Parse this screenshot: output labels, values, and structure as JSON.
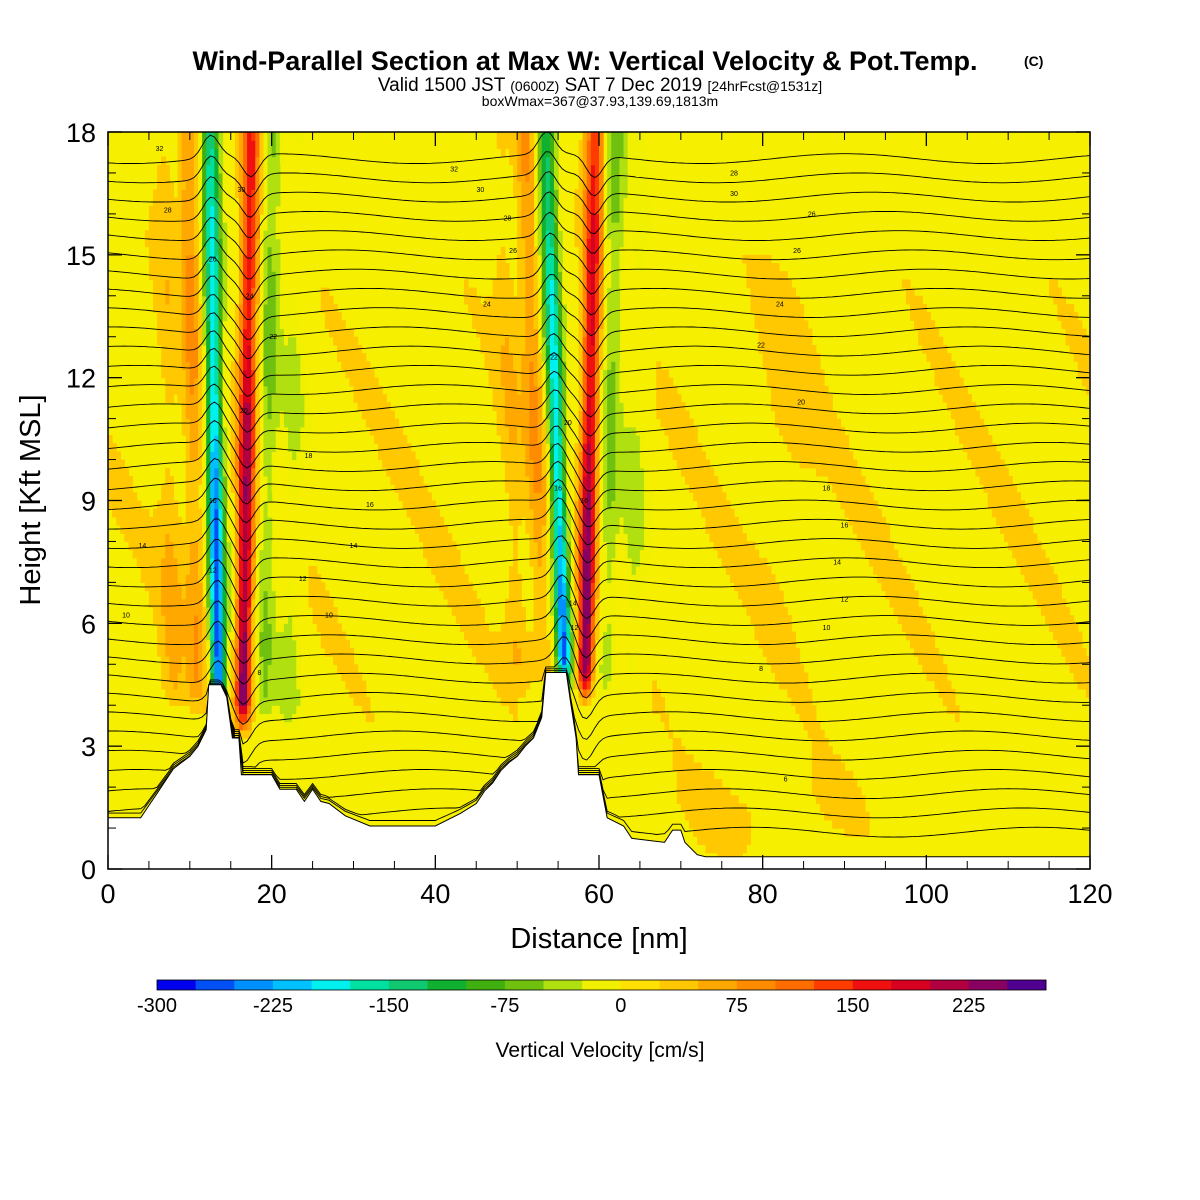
{
  "title": {
    "main": "Wind-Parallel Section at Max W: Vertical Velocity & Pot.Temp.",
    "main_mark": "(C)",
    "valid_prefix": "Valid 1500 JST",
    "valid_zulu": "(0600Z)",
    "valid_date": "SAT 7 Dec 2019",
    "valid_fcst": "[24hrFcst@1531z]",
    "box": "boxWmax=367@37.93,139.69,1813m"
  },
  "axes": {
    "xlabel": "Distance [nm]",
    "ylabel": "Height [Kft MSL]",
    "xlim": [
      0,
      120
    ],
    "ylim": [
      0,
      18
    ],
    "xticks": [
      "0",
      "20",
      "40",
      "60",
      "80",
      "100",
      "120"
    ],
    "yticks": [
      "0",
      "3",
      "6",
      "9",
      "12",
      "15",
      "18"
    ]
  },
  "colorbar": {
    "label": "Vertical Velocity [cm/s]",
    "ticks": [
      "-300",
      "-225",
      "-150",
      "-75",
      "0",
      "75",
      "150",
      "225"
    ],
    "colors": [
      "#0000ee",
      "#0050f5",
      "#0090ff",
      "#00c0ff",
      "#00f0f0",
      "#00e0a0",
      "#10c870",
      "#10b030",
      "#40b010",
      "#70c010",
      "#b0e010",
      "#f0f000",
      "#ffe000",
      "#ffc800",
      "#ffa800",
      "#ff8c00",
      "#ff6c00",
      "#ff3c00",
      "#f01010",
      "#d80020",
      "#b00040",
      "#880060",
      "#500090"
    ]
  },
  "chart_data": {
    "type": "heatmap",
    "variable": "Vertical Velocity",
    "units": "cm/s",
    "x_units": "nm",
    "y_units": "Kft MSL",
    "value_range": [
      -300,
      250
    ],
    "background_value": 10,
    "features": [
      {
        "kind": "downdraft",
        "x_base": 13.5,
        "x_top": 12.5,
        "w": -290,
        "y_range": [
          4.2,
          18
        ]
      },
      {
        "kind": "updraft",
        "x_base": 16.5,
        "x_top": 17.5,
        "w": 250,
        "y_range": [
          3.8,
          18
        ]
      },
      {
        "kind": "downdraft",
        "x_base": 55.8,
        "x_top": 53.5,
        "w": -260,
        "y_range": [
          4.8,
          18
        ]
      },
      {
        "kind": "updraft",
        "x_base": 58.3,
        "x_top": 59.5,
        "w": 250,
        "y_range": [
          4.5,
          18
        ]
      }
    ],
    "terrain_kft": [
      [
        0,
        1.25
      ],
      [
        4,
        1.25
      ],
      [
        5,
        1.55
      ],
      [
        6,
        1.85
      ],
      [
        7,
        2.15
      ],
      [
        8,
        2.45
      ],
      [
        9,
        2.6
      ],
      [
        10,
        2.75
      ],
      [
        11,
        3.0
      ],
      [
        12,
        3.4
      ],
      [
        12.3,
        4.5
      ],
      [
        13.8,
        4.5
      ],
      [
        14.5,
        4.2
      ],
      [
        15.2,
        3.2
      ],
      [
        16,
        3.2
      ],
      [
        16.3,
        2.3
      ],
      [
        20,
        2.3
      ],
      [
        21,
        1.95
      ],
      [
        23,
        1.95
      ],
      [
        24,
        1.65
      ],
      [
        25,
        1.95
      ],
      [
        26,
        1.65
      ],
      [
        27,
        1.6
      ],
      [
        29,
        1.3
      ],
      [
        32,
        1.05
      ],
      [
        35,
        1.05
      ],
      [
        40,
        1.05
      ],
      [
        43,
        1.35
      ],
      [
        45,
        1.6
      ],
      [
        46,
        1.9
      ],
      [
        47,
        2.1
      ],
      [
        48,
        2.4
      ],
      [
        49,
        2.6
      ],
      [
        50,
        2.75
      ],
      [
        51,
        3.0
      ],
      [
        52,
        3.2
      ],
      [
        53,
        3.7
      ],
      [
        53.5,
        4.8
      ],
      [
        56,
        4.8
      ],
      [
        56.5,
        4.1
      ],
      [
        57.2,
        3.2
      ],
      [
        57.5,
        2.3
      ],
      [
        60,
        2.3
      ],
      [
        61,
        1.25
      ],
      [
        63,
        1.05
      ],
      [
        64,
        0.75
      ],
      [
        68,
        0.65
      ],
      [
        69,
        0.95
      ],
      [
        70,
        0.95
      ],
      [
        70.5,
        0.65
      ],
      [
        72,
        0.35
      ],
      [
        73,
        0.3
      ],
      [
        120,
        0.3
      ]
    ],
    "theta_contours_C": [
      "4",
      "6",
      "8",
      "10",
      "12",
      "14",
      "16",
      "18",
      "20",
      "22",
      "24",
      "26",
      "28",
      "30",
      "32"
    ],
    "theta_labels": [
      {
        "text": "32",
        "x": 6.3,
        "y": 17.6
      },
      {
        "text": "32",
        "x": 42.3,
        "y": 17.1
      },
      {
        "text": "30",
        "x": 45.5,
        "y": 16.6
      },
      {
        "text": "28",
        "x": 76.5,
        "y": 17.0
      },
      {
        "text": "30",
        "x": 76.5,
        "y": 16.5
      },
      {
        "text": "28",
        "x": 7.3,
        "y": 16.1
      },
      {
        "text": "30",
        "x": 16.3,
        "y": 16.6
      },
      {
        "text": "28",
        "x": 48.8,
        "y": 15.9
      },
      {
        "text": "26",
        "x": 86.0,
        "y": 16.0
      },
      {
        "text": "26",
        "x": 49.5,
        "y": 15.1
      },
      {
        "text": "26",
        "x": 84.2,
        "y": 15.1
      },
      {
        "text": "26",
        "x": 12.8,
        "y": 14.9
      },
      {
        "text": "24",
        "x": 17.3,
        "y": 14.0
      },
      {
        "text": "24",
        "x": 46.3,
        "y": 13.8
      },
      {
        "text": "24",
        "x": 82.1,
        "y": 13.8
      },
      {
        "text": "22",
        "x": 20.2,
        "y": 13.0
      },
      {
        "text": "22",
        "x": 54.5,
        "y": 12.5
      },
      {
        "text": "22",
        "x": 79.8,
        "y": 12.8
      },
      {
        "text": "20",
        "x": 16.6,
        "y": 11.2
      },
      {
        "text": "20",
        "x": 56.2,
        "y": 10.9
      },
      {
        "text": "20",
        "x": 84.7,
        "y": 11.4
      },
      {
        "text": "18",
        "x": 24.5,
        "y": 10.1
      },
      {
        "text": "18",
        "x": 87.8,
        "y": 9.3
      },
      {
        "text": "16",
        "x": 32.0,
        "y": 8.9
      },
      {
        "text": "16",
        "x": 55.0,
        "y": 9.3
      },
      {
        "text": "16",
        "x": 58.2,
        "y": 9.0
      },
      {
        "text": "16",
        "x": 12.8,
        "y": 9.0
      },
      {
        "text": "16",
        "x": 90.0,
        "y": 8.4
      },
      {
        "text": "14",
        "x": 4.2,
        "y": 7.9
      },
      {
        "text": "14",
        "x": 30.0,
        "y": 7.9
      },
      {
        "text": "14",
        "x": 89.1,
        "y": 7.5
      },
      {
        "text": "12",
        "x": 12.8,
        "y": 7.3
      },
      {
        "text": "12",
        "x": 23.8,
        "y": 7.1
      },
      {
        "text": "14",
        "x": 56.8,
        "y": 6.5
      },
      {
        "text": "12",
        "x": 90.0,
        "y": 6.6
      },
      {
        "text": "10",
        "x": 2.2,
        "y": 6.2
      },
      {
        "text": "10",
        "x": 27.0,
        "y": 6.2
      },
      {
        "text": "12",
        "x": 57.0,
        "y": 5.9
      },
      {
        "text": "10",
        "x": 87.8,
        "y": 5.9
      },
      {
        "text": "8",
        "x": 18.5,
        "y": 4.8
      },
      {
        "text": "8",
        "x": 79.8,
        "y": 4.9
      },
      {
        "text": "6",
        "x": 82.8,
        "y": 2.2
      }
    ]
  }
}
